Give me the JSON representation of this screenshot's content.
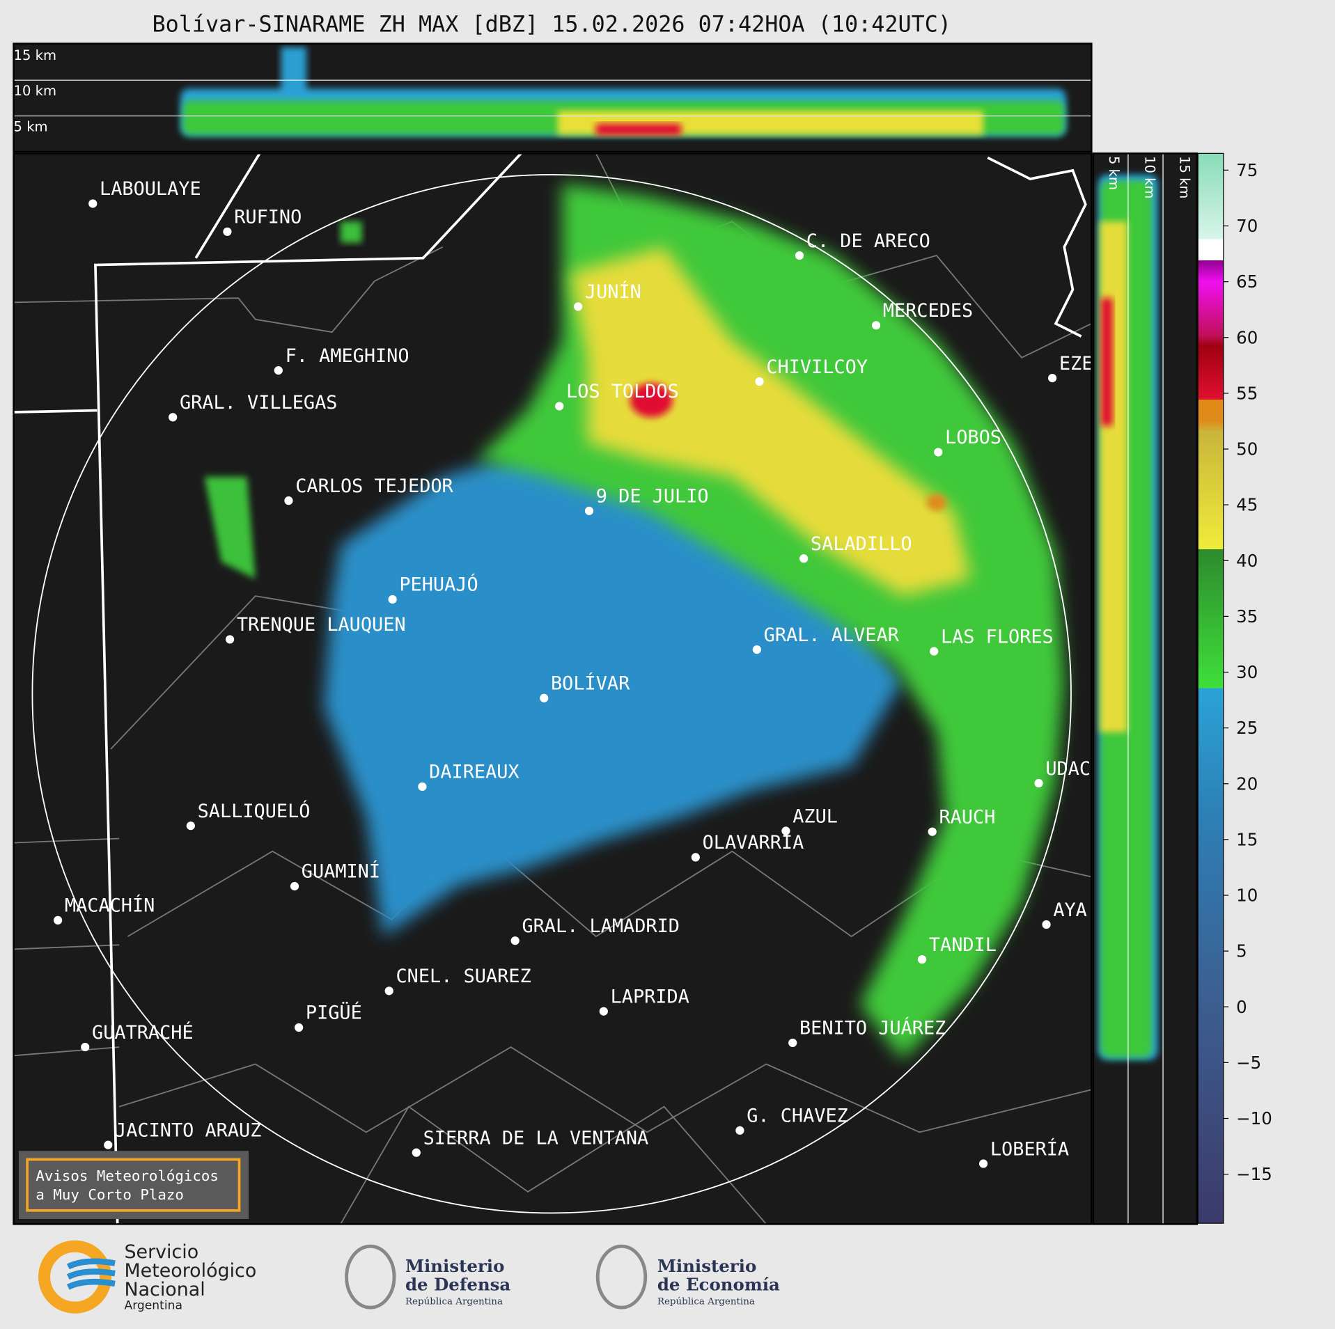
{
  "header": {
    "title": "Bolívar-SINARAME ZH MAX [dBZ] 15.02.2026 07:42HOA (10:42UTC)"
  },
  "top_panel": {
    "height_labels": [
      "15 km",
      "10 km",
      "5 km"
    ]
  },
  "side_panel": {
    "height_labels": [
      "5 km",
      "10 km",
      "15 km"
    ]
  },
  "cities": [
    "LABOULAYE",
    "RUFINO",
    "C. DE ARECO",
    "JUNÍN",
    "MERCEDES",
    "F. AMEGHINO",
    "CHIVILCOY",
    "EZE",
    "LOS TOLDOS",
    "GRAL. VILLEGAS",
    "LOBOS",
    "CARLOS TEJEDOR",
    "9 DE JULIO",
    "SALADILLO",
    "PEHUAJÓ",
    "TRENQUE LAUQUEN",
    "GRAL. ALVEAR",
    "LAS FLORES",
    "BOLÍVAR",
    "UDAC",
    "DAIREAUX",
    "SALLIQUELÓ",
    "AZUL",
    "RAUCH",
    "OLAVARRÍA",
    "GUAMINÍ",
    "MACACHÍN",
    "AYA",
    "GRAL. LAMADRID",
    "TANDIL",
    "CNEL. SUAREZ",
    "LAPRIDA",
    "PIGÜÉ",
    "GUATRACHÉ",
    "BENITO JUÁREZ",
    "G. CHAVEZ",
    "JACINTO ARAUZ",
    "SIERRA DE LA VENTANA",
    "LOBERÍA"
  ],
  "colorbar": {
    "lim": [
      -19.4,
      76.5
    ],
    "ticks": [
      75,
      70,
      65,
      60,
      55,
      50,
      45,
      40,
      35,
      30,
      25,
      20,
      15,
      10,
      5,
      0,
      {
        "value": -5,
        "label": "−5"
      },
      {
        "value": -10,
        "label": "−10"
      },
      {
        "value": -15,
        "label": "−15"
      }
    ]
  },
  "warning_box": {
    "lines": [
      "Avisos Meteorológicos",
      "a Muy Corto Plazo"
    ]
  },
  "footer": {
    "smn": [
      "Servicio",
      "Meteorológico",
      "Nacional",
      "Argentina"
    ],
    "defensa": [
      "Ministerio",
      "de Defensa",
      "República Argentina"
    ],
    "economia": [
      "Ministerio",
      "de Economía",
      "República Argentina"
    ]
  }
}
